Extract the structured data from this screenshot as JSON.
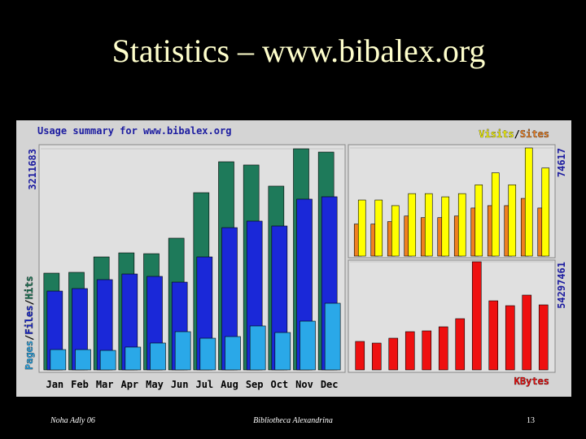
{
  "slide": {
    "title": "Statistics – www.bibalex.org",
    "footer_left": "Noha Adly 06",
    "footer_center": "Bibliotheca Alexandrina",
    "page_number": "13"
  },
  "chart_data": [
    {
      "type": "bar",
      "title": "Usage summary for www.bibalex.org",
      "categories": [
        "Jan",
        "Feb",
        "Mar",
        "Apr",
        "May",
        "Jun",
        "Jul",
        "Aug",
        "Sep",
        "Oct",
        "Nov",
        "Dec"
      ],
      "legend_separator": "/",
      "series": [
        {
          "name": "Pages",
          "color": "#2aa8e8",
          "values": [
            295000,
            295000,
            283000,
            331000,
            390000,
            555000,
            460000,
            484000,
            638000,
            543000,
            708000,
            968000
          ]
        },
        {
          "name": "Files",
          "color": "#1a28d8",
          "values": [
            1145000,
            1181000,
            1311000,
            1393000,
            1358000,
            1275000,
            1641000,
            2066000,
            2161000,
            2090000,
            2480000,
            2515000
          ]
        },
        {
          "name": "Hits",
          "color": "#1e7a5a",
          "values": [
            1405000,
            1417000,
            1641000,
            1700000,
            1688000,
            1913000,
            2574000,
            3023000,
            2976000,
            2669000,
            3211683,
            3164000
          ]
        }
      ],
      "ylim": [
        0,
        3211683
      ],
      "yticks": [
        3211683
      ]
    },
    {
      "type": "bar",
      "legend_separator": "/",
      "series": [
        {
          "name": "Visits",
          "color": "#ffff00",
          "values": [
            38690,
            38690,
            34820,
            43110,
            43110,
            40900,
            43110,
            49190,
            57480,
            49190,
            74617,
            60800
          ]
        },
        {
          "name": "Sites",
          "color": "#f08020",
          "values": [
            22110,
            22110,
            23770,
            27640,
            26530,
            26530,
            27640,
            33160,
            34820,
            34820,
            39800,
            33160
          ]
        }
      ],
      "ylim": [
        0,
        74617
      ],
      "yticks": [
        74617
      ]
    },
    {
      "type": "bar",
      "series": [
        {
          "name": "KBytes",
          "color": "#ee1010",
          "values": [
            14290000,
            13470000,
            15920000,
            19190000,
            19600000,
            21640000,
            25720000,
            54297461,
            34700000,
            32250000,
            37560000,
            32660000
          ]
        }
      ],
      "ylim": [
        0,
        54297461
      ],
      "yticks": [
        54297461
      ]
    }
  ]
}
